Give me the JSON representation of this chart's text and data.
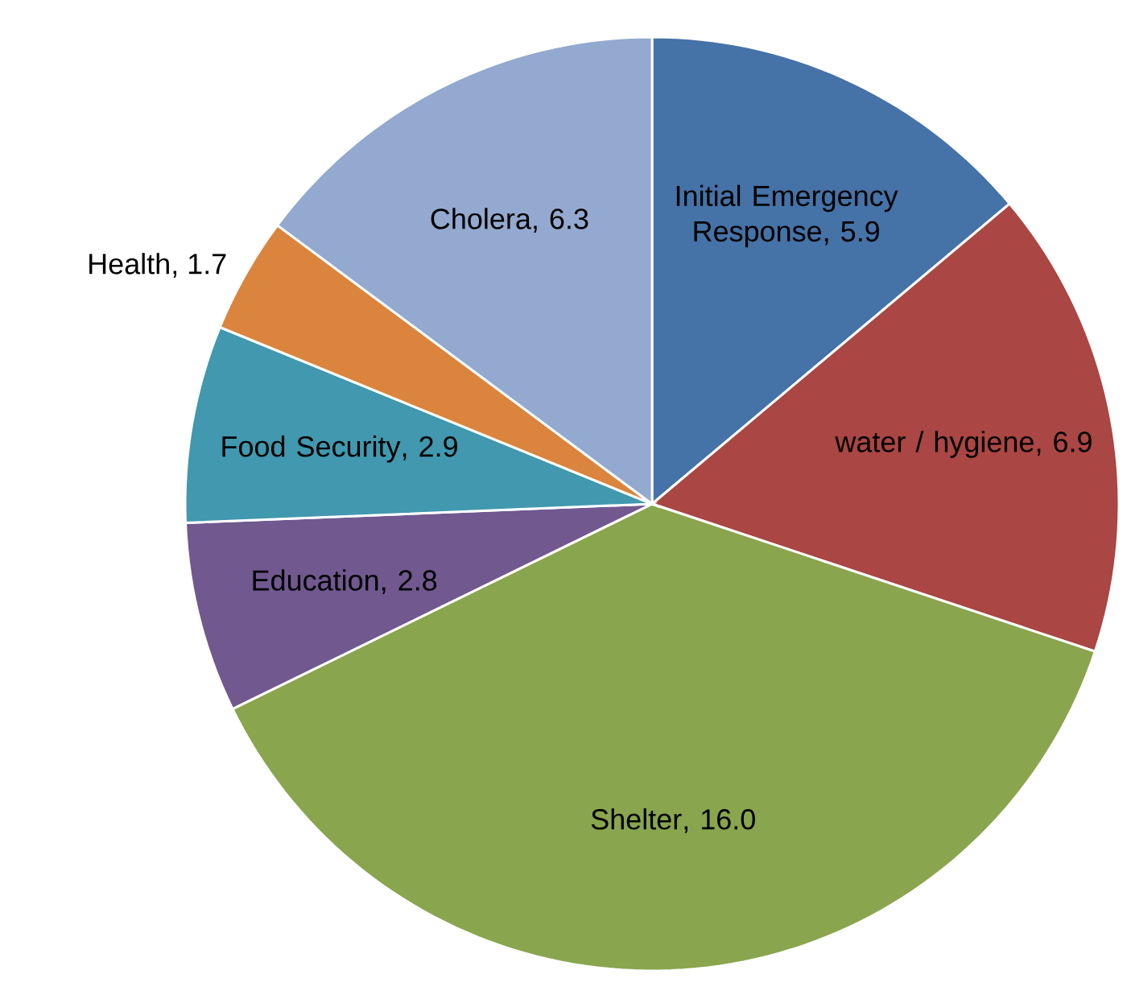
{
  "chart_data": {
    "type": "pie",
    "categories": [
      "Initial Emergency Response",
      "water / hygiene",
      "Shelter",
      "Education",
      "Food Security",
      "Health",
      "Cholera"
    ],
    "values": [
      5.9,
      6.9,
      16.0,
      2.8,
      2.9,
      1.7,
      6.3
    ],
    "colors": [
      "#4572a7",
      "#aa4643",
      "#89a54e",
      "#71588f",
      "#4198af",
      "#db843d",
      "#93a9cf"
    ],
    "value_labels": [
      ", 5.9",
      ", 6.9",
      ", 16.0",
      ", 2.8",
      ", 2.9",
      ", 1.7",
      ", 6.3"
    ]
  }
}
